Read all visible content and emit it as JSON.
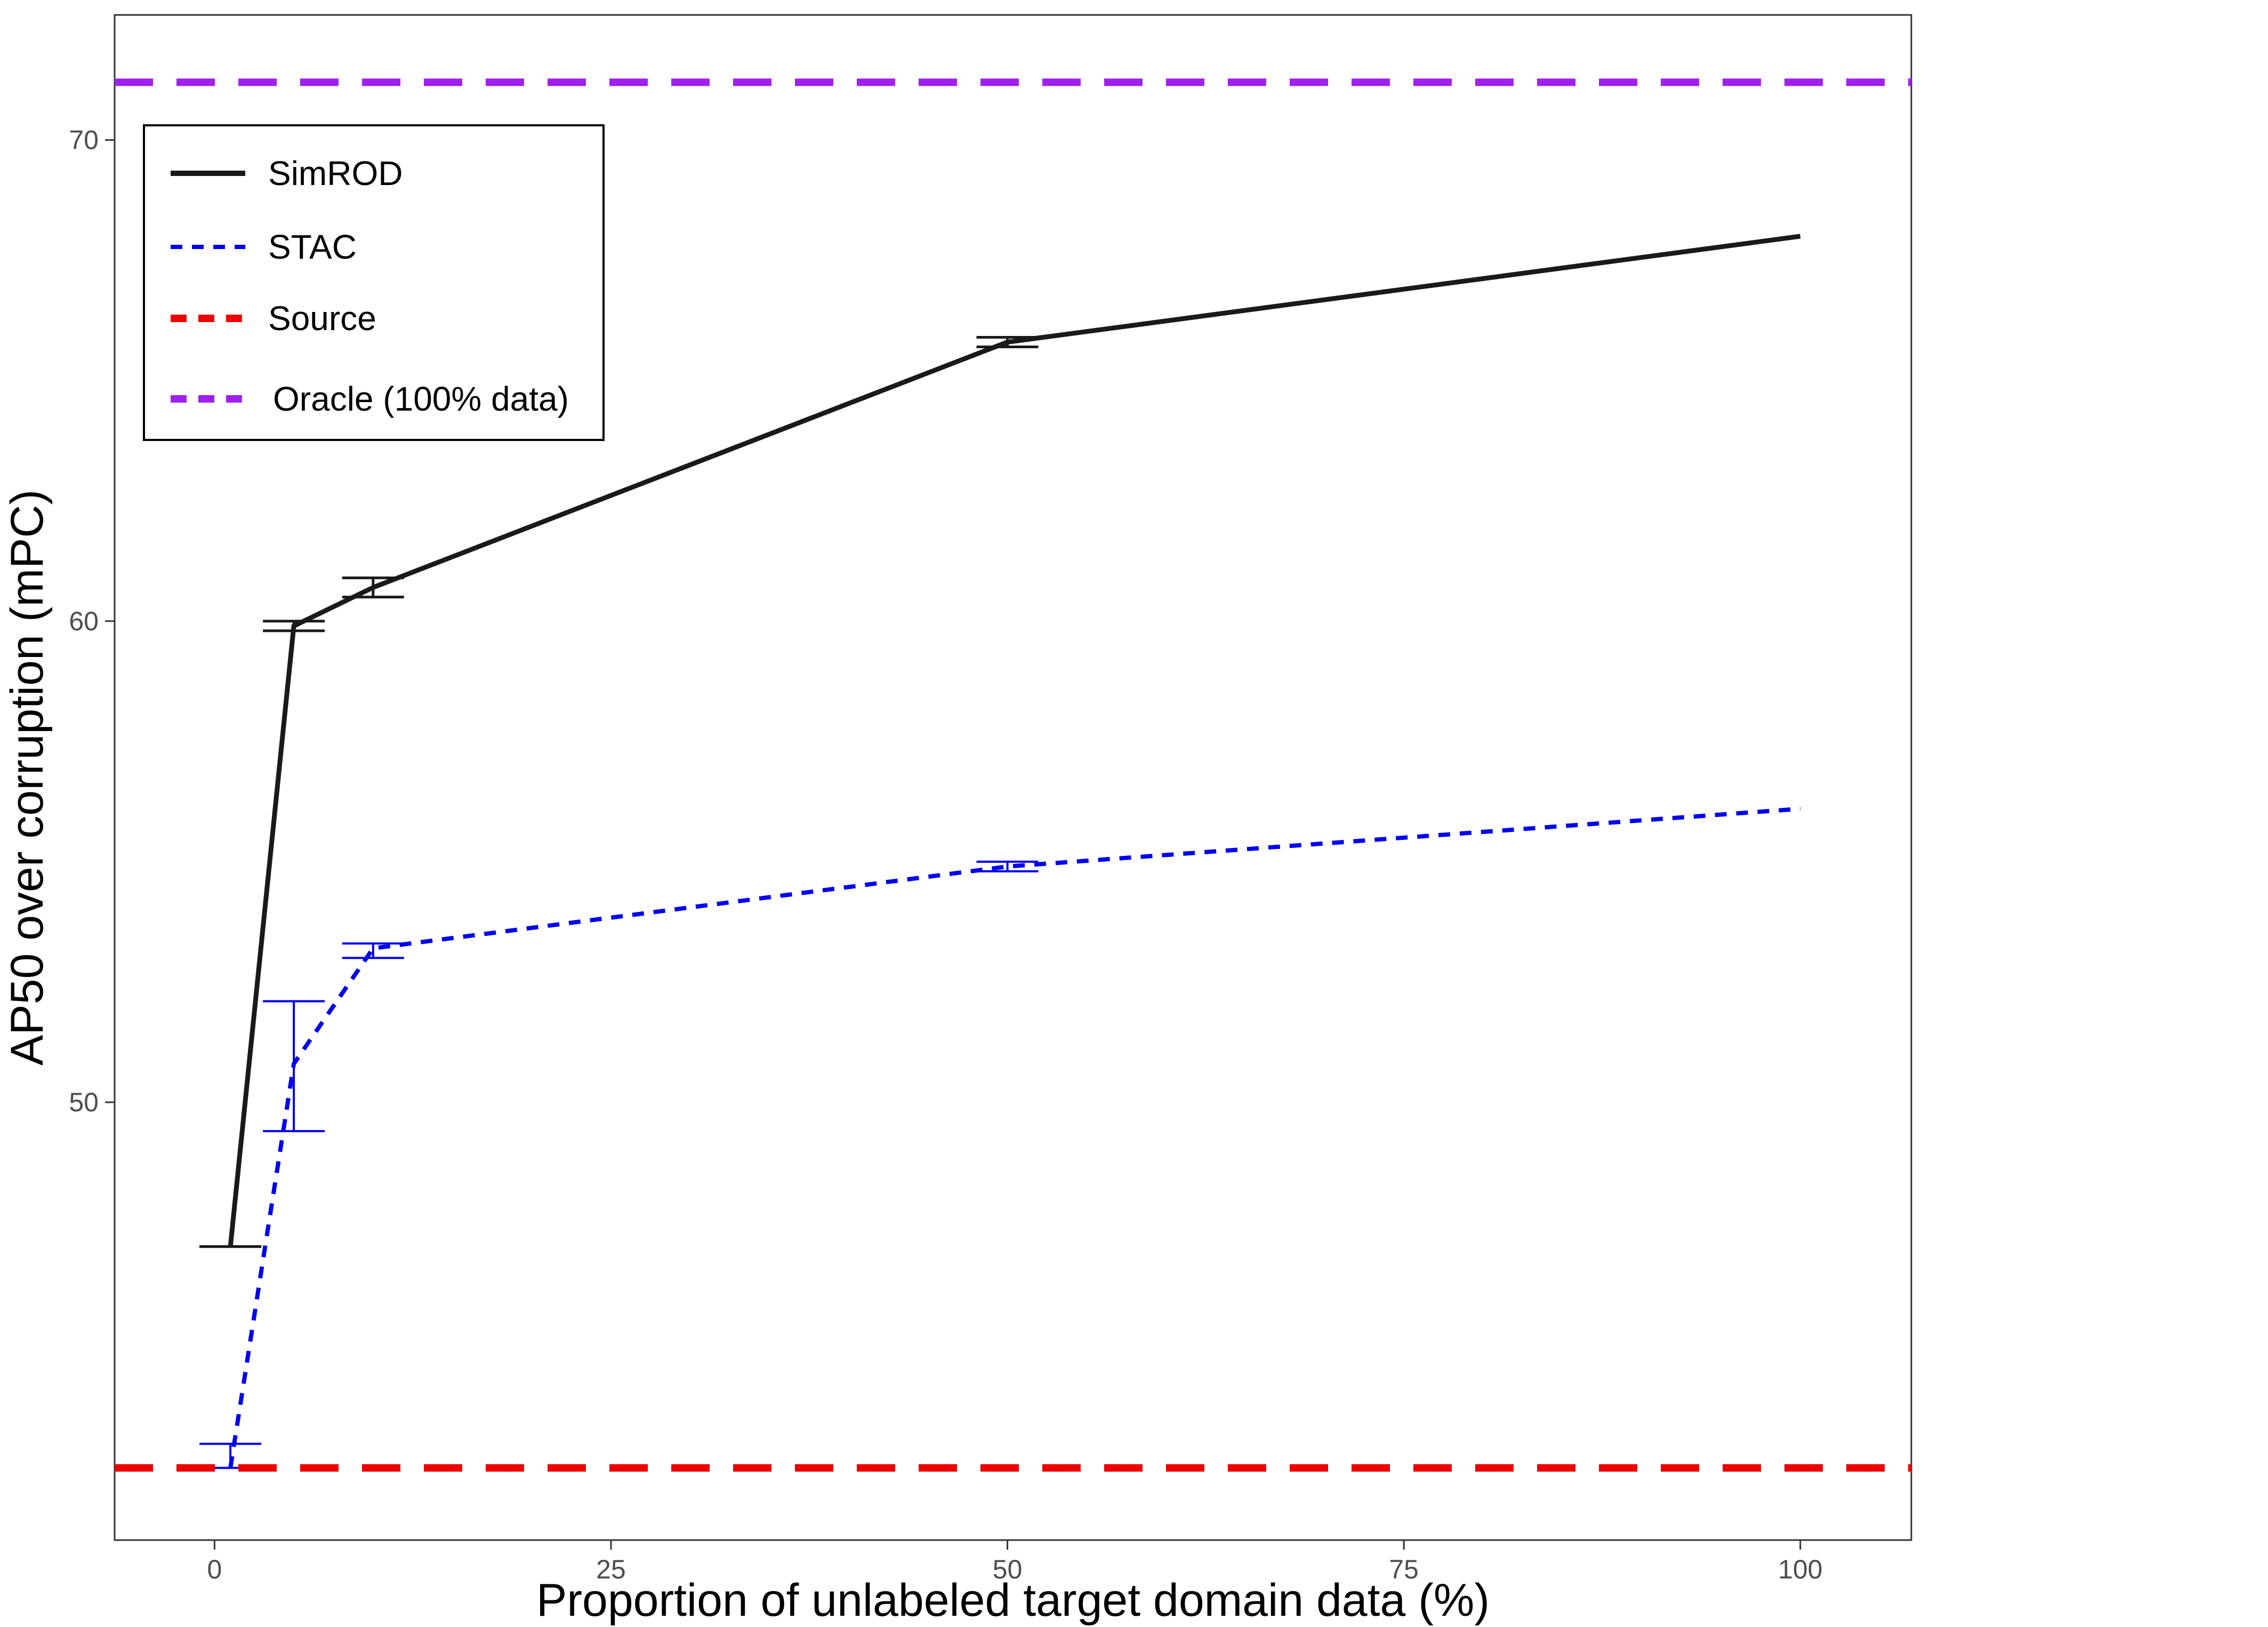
{
  "chart_data": {
    "type": "line",
    "title": "",
    "xlabel": "Proportion of unlabeled target domain data (%)",
    "ylabel": "AP50 over corruption (mPC)",
    "xlim": [
      -6.3,
      107
    ],
    "ylim": [
      40.9,
      72.6
    ],
    "xticks": [
      0,
      25,
      50,
      75,
      100
    ],
    "yticks": [
      50,
      60,
      70
    ],
    "grid": false,
    "legend_position": "top-left",
    "series": [
      {
        "name": "SimROD",
        "style": "solid",
        "color": "#1a1a1a",
        "x": [
          1,
          5,
          10,
          50,
          100
        ],
        "y": [
          47.0,
          59.9,
          60.7,
          65.8,
          68.0
        ],
        "error_low": [
          47.0,
          59.8,
          60.5,
          65.7,
          68.0
        ],
        "error_high": [
          47.0,
          60.0,
          60.9,
          65.9,
          68.0
        ]
      },
      {
        "name": "STAC",
        "style": "dashed",
        "color": "#0000ee",
        "x": [
          1,
          5,
          10,
          50,
          100
        ],
        "y": [
          42.4,
          50.8,
          53.2,
          54.9,
          56.1
        ],
        "error_low": [
          42.4,
          49.4,
          53.0,
          54.8,
          56.1
        ],
        "error_high": [
          42.9,
          52.1,
          53.3,
          55.0,
          56.1
        ]
      },
      {
        "name": "Source",
        "style": "dashed-hline",
        "color": "#ee0000",
        "y": 42.4
      },
      {
        "name": "Oracle (100% data)",
        "style": "dashed-hline",
        "color": "#a020f0",
        "y": 71.2
      }
    ]
  }
}
